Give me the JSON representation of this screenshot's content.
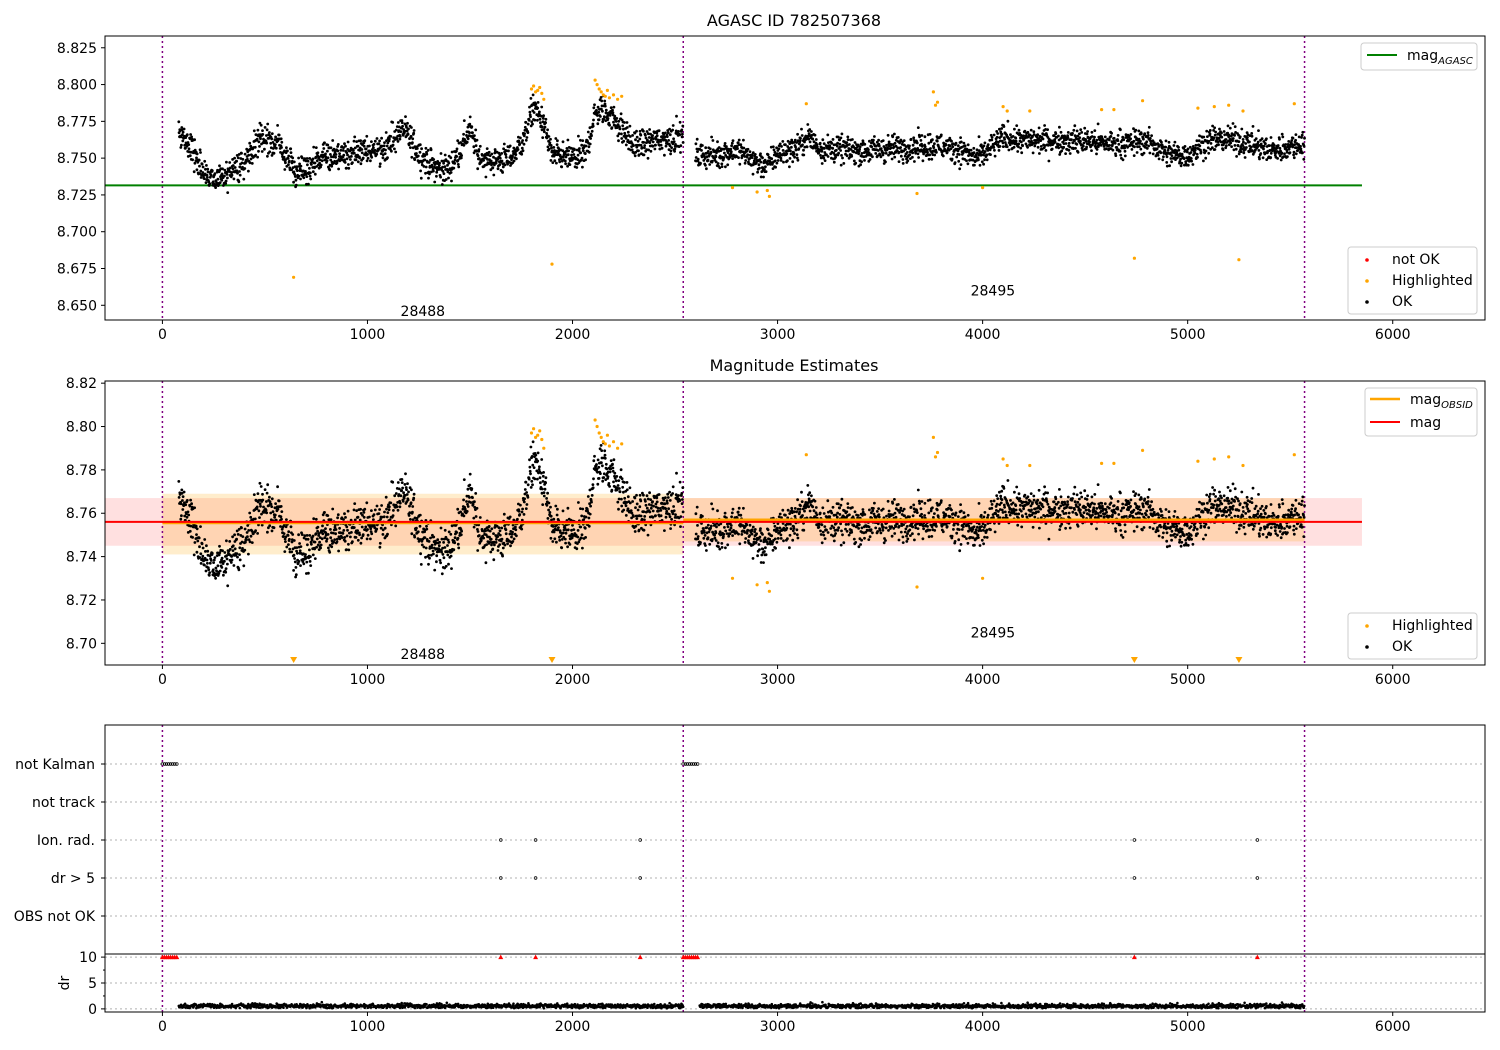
{
  "chart_data": [
    {
      "type": "scatter",
      "title": "AGASC ID 782507368",
      "xlabel": "",
      "ylabel": "",
      "xlim": [
        -280,
        6450
      ],
      "ylim": [
        8.64,
        8.833
      ],
      "xticks": [
        0,
        1000,
        2000,
        3000,
        4000,
        5000,
        6000
      ],
      "yticks": [
        8.65,
        8.675,
        8.7,
        8.725,
        8.75,
        8.775,
        8.8,
        8.825
      ],
      "ytick_format": 3,
      "obsid_boundaries": [
        0,
        2540,
        5570
      ],
      "obsid_labels": [
        {
          "text": "28488",
          "x": 1270,
          "y": 8.646
        },
        {
          "text": "28495",
          "x": 4050,
          "y": 8.66
        }
      ],
      "reference_line": {
        "name": "mag",
        "subscript": "AGASC",
        "y": 8.7315,
        "x": [
          -280,
          5850
        ],
        "color": "#008000"
      },
      "legend_lines": [
        {
          "name": "mag",
          "subscript": "AGASC",
          "color": "#008000"
        }
      ],
      "legend_points": [
        {
          "name": "not OK",
          "color": "#ff0000"
        },
        {
          "name": "Highlighted",
          "color": "#ffa500"
        },
        {
          "name": "OK",
          "color": "#000000"
        }
      ],
      "obs1_envelope": [
        [
          80,
          8.77
        ],
        [
          130,
          8.757
        ],
        [
          180,
          8.746
        ],
        [
          250,
          8.735
        ],
        [
          300,
          8.737
        ],
        [
          400,
          8.748
        ],
        [
          470,
          8.763
        ],
        [
          550,
          8.762
        ],
        [
          620,
          8.748
        ],
        [
          660,
          8.737
        ],
        [
          700,
          8.742
        ],
        [
          800,
          8.752
        ],
        [
          900,
          8.752
        ],
        [
          1000,
          8.755
        ],
        [
          1100,
          8.758
        ],
        [
          1170,
          8.77
        ],
        [
          1210,
          8.762
        ],
        [
          1260,
          8.752
        ],
        [
          1330,
          8.743
        ],
        [
          1400,
          8.743
        ],
        [
          1460,
          8.758
        ],
        [
          1500,
          8.77
        ],
        [
          1540,
          8.752
        ],
        [
          1600,
          8.748
        ],
        [
          1700,
          8.75
        ],
        [
          1760,
          8.762
        ],
        [
          1810,
          8.785
        ],
        [
          1860,
          8.773
        ],
        [
          1900,
          8.752
        ],
        [
          2000,
          8.75
        ],
        [
          2060,
          8.752
        ],
        [
          2110,
          8.78
        ],
        [
          2150,
          8.783
        ],
        [
          2200,
          8.777
        ],
        [
          2250,
          8.768
        ],
        [
          2300,
          8.758
        ],
        [
          2400,
          8.762
        ],
        [
          2540,
          8.765
        ]
      ],
      "obs2_envelope": [
        [
          2600,
          8.752
        ],
        [
          2700,
          8.752
        ],
        [
          2800,
          8.756
        ],
        [
          2900,
          8.747
        ],
        [
          2950,
          8.745
        ],
        [
          3000,
          8.753
        ],
        [
          3100,
          8.757
        ],
        [
          3150,
          8.765
        ],
        [
          3200,
          8.757
        ],
        [
          3300,
          8.756
        ],
        [
          3400,
          8.755
        ],
        [
          3500,
          8.756
        ],
        [
          3600,
          8.757
        ],
        [
          3700,
          8.758
        ],
        [
          3800,
          8.758
        ],
        [
          3900,
          8.755
        ],
        [
          3960,
          8.75
        ],
        [
          4000,
          8.752
        ],
        [
          4100,
          8.764
        ],
        [
          4200,
          8.762
        ],
        [
          4300,
          8.762
        ],
        [
          4400,
          8.762
        ],
        [
          4500,
          8.762
        ],
        [
          4600,
          8.76
        ],
        [
          4700,
          8.76
        ],
        [
          4800,
          8.762
        ],
        [
          4900,
          8.753
        ],
        [
          5000,
          8.752
        ],
        [
          5100,
          8.762
        ],
        [
          5200,
          8.763
        ],
        [
          5300,
          8.76
        ],
        [
          5400,
          8.755
        ],
        [
          5570,
          8.76
        ]
      ],
      "highlighted_points": [
        [
          640,
          8.669
        ],
        [
          1800,
          8.797
        ],
        [
          1810,
          8.799
        ],
        [
          1820,
          8.795
        ],
        [
          1830,
          8.796
        ],
        [
          1840,
          8.798
        ],
        [
          1850,
          8.794
        ],
        [
          1860,
          8.79
        ],
        [
          1900,
          8.678
        ],
        [
          2110,
          8.803
        ],
        [
          2120,
          8.8
        ],
        [
          2130,
          8.797
        ],
        [
          2140,
          8.795
        ],
        [
          2150,
          8.793
        ],
        [
          2160,
          8.792
        ],
        [
          2170,
          8.796
        ],
        [
          2180,
          8.791
        ],
        [
          2200,
          8.793
        ],
        [
          2220,
          8.79
        ],
        [
          2240,
          8.792
        ],
        [
          2780,
          8.73
        ],
        [
          2900,
          8.727
        ],
        [
          2950,
          8.728
        ],
        [
          2960,
          8.724
        ],
        [
          3140,
          8.787
        ],
        [
          3680,
          8.726
        ],
        [
          3760,
          8.795
        ],
        [
          3770,
          8.786
        ],
        [
          3780,
          8.788
        ],
        [
          4000,
          8.73
        ],
        [
          4100,
          8.785
        ],
        [
          4120,
          8.782
        ],
        [
          4230,
          8.782
        ],
        [
          4580,
          8.783
        ],
        [
          4640,
          8.783
        ],
        [
          4740,
          8.682
        ],
        [
          4780,
          8.789
        ],
        [
          5050,
          8.784
        ],
        [
          5130,
          8.785
        ],
        [
          5200,
          8.786
        ],
        [
          5250,
          8.681
        ],
        [
          5270,
          8.782
        ],
        [
          5520,
          8.787
        ]
      ]
    },
    {
      "type": "scatter",
      "title": "Magnitude Estimates",
      "xlabel": "",
      "ylabel": "",
      "xlim": [
        -280,
        6450
      ],
      "ylim": [
        8.69,
        8.821
      ],
      "xticks": [
        0,
        1000,
        2000,
        3000,
        4000,
        5000,
        6000
      ],
      "yticks": [
        8.7,
        8.72,
        8.74,
        8.76,
        8.78,
        8.8,
        8.82
      ],
      "ytick_format": 2,
      "obsid_boundaries": [
        0,
        2540,
        5570
      ],
      "obsid_labels": [
        {
          "text": "28488",
          "x": 1270,
          "y": 8.695
        },
        {
          "text": "28495",
          "x": 4050,
          "y": 8.705
        }
      ],
      "mag_line": {
        "name": "mag",
        "y": 8.756,
        "x": [
          -280,
          5850
        ],
        "color": "#ff0000",
        "band": [
          8.745,
          8.767
        ],
        "band_color": "#ff0000"
      },
      "obsid_lines": [
        {
          "name": "mag",
          "subscript": "OBSID",
          "y": 8.7555,
          "x": [
            0,
            2540
          ],
          "color": "#ffa500",
          "band": [
            8.741,
            8.769
          ]
        },
        {
          "name": "mag",
          "subscript": "OBSID",
          "y": 8.757,
          "x": [
            2540,
            5570
          ],
          "color": "#ffa500",
          "band": [
            8.747,
            8.767
          ]
        }
      ],
      "legend_lines": [
        {
          "name": "mag",
          "subscript": "OBSID",
          "color": "#ffa500"
        },
        {
          "name": "mag",
          "subscript": "",
          "color": "#ff0000"
        }
      ],
      "legend_points": [
        {
          "name": "Highlighted",
          "color": "#ffa500"
        },
        {
          "name": "OK",
          "color": "#000000"
        }
      ],
      "out_of_range_markers": [
        640,
        1900,
        4740,
        5250
      ]
    },
    {
      "type": "scatter",
      "title": "",
      "xlim": [
        -280,
        6450
      ],
      "xticks": [
        0,
        1000,
        2000,
        3000,
        4000,
        5000,
        6000
      ],
      "obsid_boundaries": [
        0,
        2540,
        5570
      ],
      "flag_rows": [
        {
          "label": "not Kalman",
          "x": [
            0,
            10,
            20,
            30,
            40,
            50,
            60,
            70,
            2540,
            2550,
            2560,
            2570,
            2580,
            2590,
            2600,
            2610
          ]
        },
        {
          "label": "not track",
          "x": []
        },
        {
          "label": "Ion. rad.",
          "x": [
            1650,
            1820,
            2330,
            4740,
            5340
          ]
        },
        {
          "label": "dr > 5",
          "x": [
            1650,
            1820,
            2330,
            4740,
            5340
          ]
        },
        {
          "label": "OBS not OK",
          "x": []
        }
      ],
      "dr_panel": {
        "ylabel": "dr",
        "ylim": [
          -0.6,
          10.6
        ],
        "yticks": [
          0,
          5,
          10
        ],
        "clipped_at": 10,
        "clipped_x": [
          0,
          10,
          20,
          30,
          40,
          50,
          60,
          70,
          1650,
          1820,
          2330,
          2540,
          2550,
          2560,
          2570,
          2580,
          2590,
          2600,
          2610,
          4740,
          5340
        ],
        "typical_range": [
          0.1,
          1.4
        ],
        "x_ranges": [
          [
            80,
            2540
          ],
          [
            2620,
            5570
          ]
        ]
      }
    }
  ]
}
